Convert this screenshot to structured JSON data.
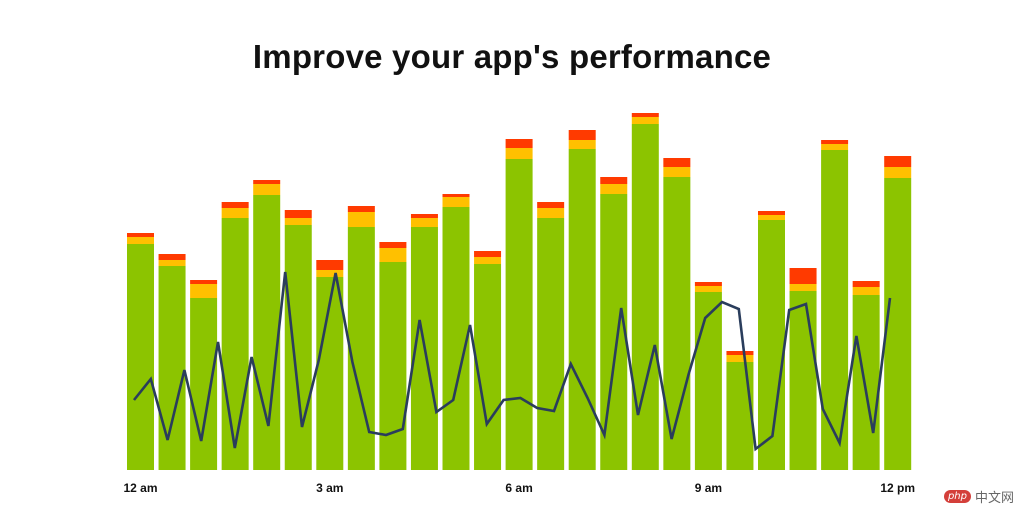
{
  "colors": {
    "green": "#8cc400",
    "yellow": "#ffc000",
    "red": "#ff3a00",
    "line": "#2a3d5c",
    "text": "#111111"
  },
  "chart_data": {
    "type": "bar",
    "title": "Improve your app's performance",
    "stacked": true,
    "x_tick_labels": [
      "12 am",
      "3 am",
      "6 am",
      "9 am",
      "12 pm"
    ],
    "x_tick_bar_index": [
      0,
      6,
      12,
      18,
      24
    ],
    "ylim": [
      0,
      360
    ],
    "grid": false,
    "bar_series": [
      {
        "color_key": "green",
        "values": [
          226,
          204,
          172,
          252,
          275,
          245,
          193,
          243,
          208,
          243,
          263,
          206,
          311,
          252,
          321,
          276,
          346,
          293,
          178,
          108,
          250,
          179,
          320,
          175,
          292
        ]
      },
      {
        "color_key": "yellow",
        "values": [
          7,
          6,
          14,
          10,
          11,
          7,
          7,
          15,
          14,
          9,
          10,
          7,
          11,
          10,
          9,
          10,
          7,
          10,
          6,
          7,
          5,
          7,
          6,
          8,
          11
        ]
      },
      {
        "color_key": "red",
        "values": [
          4,
          6,
          4,
          6,
          4,
          8,
          10,
          6,
          6,
          4,
          3,
          6,
          9,
          6,
          10,
          7,
          4,
          9,
          4,
          4,
          4,
          16,
          4,
          6,
          11
        ]
      }
    ],
    "line_series": {
      "color_key": "line",
      "values": [
        70,
        91,
        30,
        100,
        29,
        128,
        22,
        113,
        44,
        198,
        43,
        110,
        197,
        108,
        38,
        35,
        41,
        150,
        58,
        70,
        145,
        46,
        70,
        72,
        62,
        59,
        106,
        72,
        35,
        162,
        55,
        125,
        31,
        95,
        152,
        168,
        161,
        21,
        34,
        160,
        166,
        61,
        27,
        134,
        37,
        172
      ]
    }
  },
  "watermark": {
    "logo": "php",
    "text": "中文网"
  }
}
